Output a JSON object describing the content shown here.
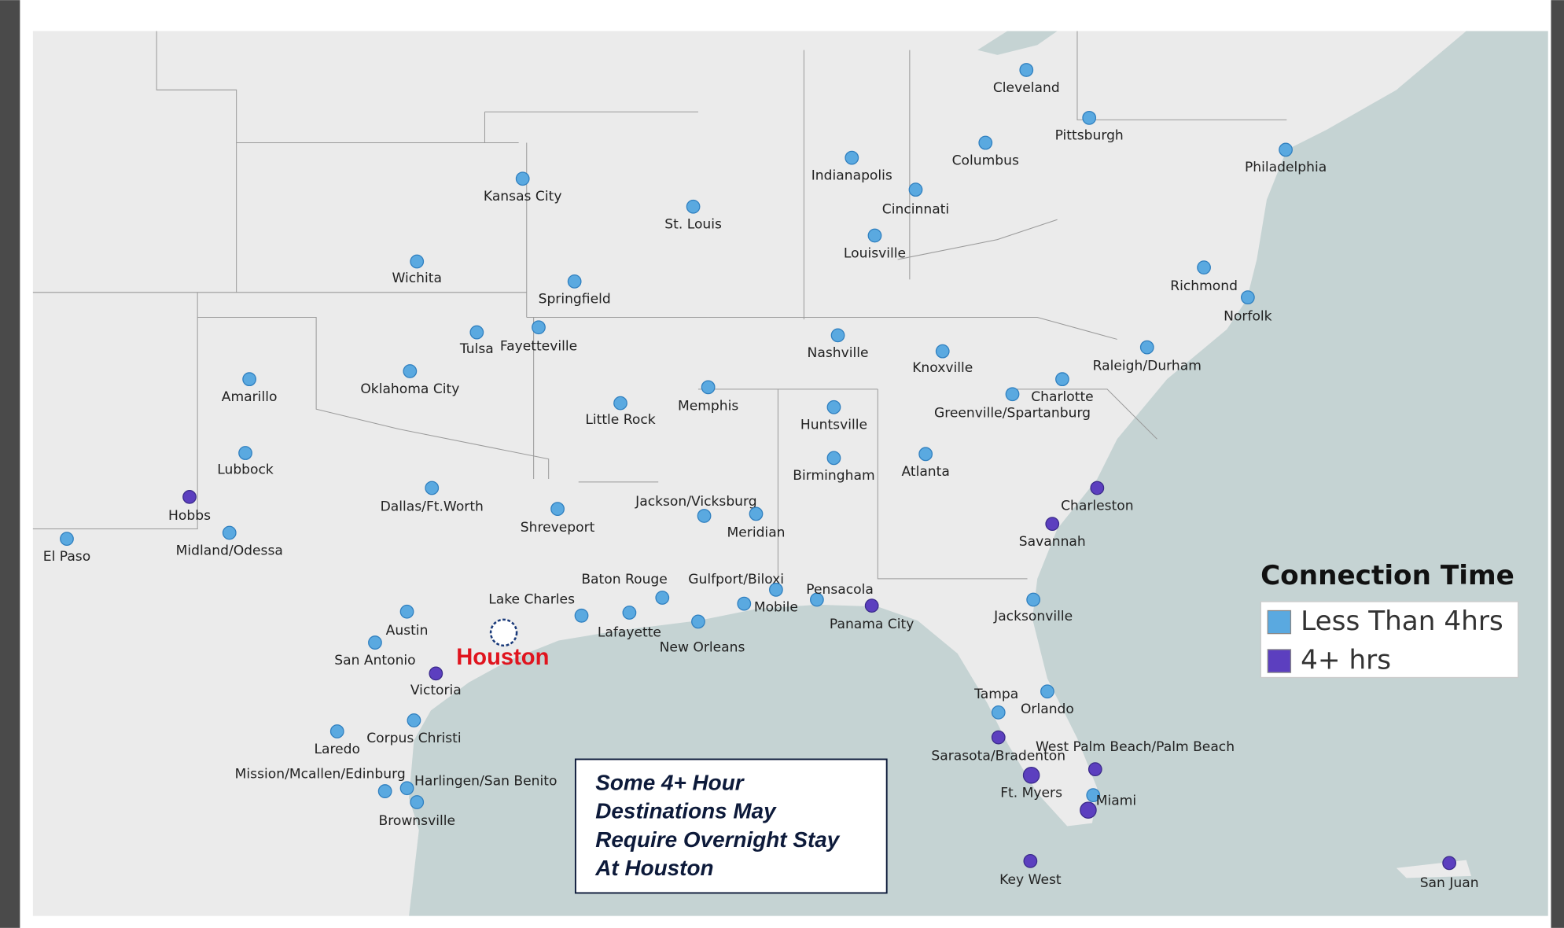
{
  "legend": {
    "title": "Connection Time",
    "items": [
      {
        "label": "Less Than 4hrs",
        "color": "#5aa9e0"
      },
      {
        "label": "4+ hrs",
        "color": "#5c3fbf"
      }
    ]
  },
  "hub": {
    "label": "Houston",
    "color": "#e0141e"
  },
  "note": [
    "Some 4+ Hour",
    "Destinations May",
    "Require Overnight Stay",
    "At Houston"
  ],
  "cities": [
    {
      "name": "Cleveland",
      "group": 0
    },
    {
      "name": "Pittsburgh",
      "group": 0
    },
    {
      "name": "Philadelphia",
      "group": 0
    },
    {
      "name": "Columbus",
      "group": 0
    },
    {
      "name": "Indianapolis",
      "group": 0
    },
    {
      "name": "Cincinnati",
      "group": 0
    },
    {
      "name": "Louisville",
      "group": 0
    },
    {
      "name": "Kansas City",
      "group": 0
    },
    {
      "name": "St. Louis",
      "group": 0
    },
    {
      "name": "Wichita",
      "group": 0
    },
    {
      "name": "Springfield",
      "group": 0
    },
    {
      "name": "Tulsa",
      "group": 0
    },
    {
      "name": "Fayetteville",
      "group": 0
    },
    {
      "name": "Oklahoma City",
      "group": 0
    },
    {
      "name": "Amarillo",
      "group": 0
    },
    {
      "name": "Lubbock",
      "group": 0
    },
    {
      "name": "Hobbs",
      "group": 1
    },
    {
      "name": "Midland/Odessa",
      "group": 0
    },
    {
      "name": "El Paso",
      "group": 0
    },
    {
      "name": "Dallas/Ft.Worth",
      "group": 0
    },
    {
      "name": "Shreveport",
      "group": 0
    },
    {
      "name": "Little Rock",
      "group": 0
    },
    {
      "name": "Memphis",
      "group": 0
    },
    {
      "name": "Nashville",
      "group": 0
    },
    {
      "name": "Knoxville",
      "group": 0
    },
    {
      "name": "Richmond",
      "group": 0
    },
    {
      "name": "Norfolk",
      "group": 0
    },
    {
      "name": "Raleigh/Durham",
      "group": 0
    },
    {
      "name": "Charlotte",
      "group": 0
    },
    {
      "name": "Greenville/Spartanburg",
      "group": 0
    },
    {
      "name": "Huntsville",
      "group": 0
    },
    {
      "name": "Birmingham",
      "group": 0
    },
    {
      "name": "Atlanta",
      "group": 0
    },
    {
      "name": "Charleston",
      "group": 1
    },
    {
      "name": "Savannah",
      "group": 1
    },
    {
      "name": "Jackson/Vicksburg",
      "group": 0
    },
    {
      "name": "Meridian",
      "group": 0
    },
    {
      "name": "Baton Rouge",
      "group": 0
    },
    {
      "name": "Gulfport/Biloxi",
      "group": 0
    },
    {
      "name": "Mobile",
      "group": 0
    },
    {
      "name": "Pensacola",
      "group": 0
    },
    {
      "name": "Panama City",
      "group": 1
    },
    {
      "name": "Lake Charles",
      "group": 0
    },
    {
      "name": "Lafayette",
      "group": 0
    },
    {
      "name": "New Orleans",
      "group": 0
    },
    {
      "name": "Jacksonville",
      "group": 0
    },
    {
      "name": "Austin",
      "group": 0
    },
    {
      "name": "San Antonio",
      "group": 0
    },
    {
      "name": "Victoria",
      "group": 1
    },
    {
      "name": "Corpus Christi",
      "group": 0
    },
    {
      "name": "Laredo",
      "group": 0
    },
    {
      "name": "Mission/Mcallen/Edinburg",
      "group": 0
    },
    {
      "name": "Harlingen/San Benito",
      "group": 0
    },
    {
      "name": "Brownsville",
      "group": 0
    },
    {
      "name": "Tampa",
      "group": 0
    },
    {
      "name": "Orlando",
      "group": 0
    },
    {
      "name": "Sarasota/Bradenton",
      "group": 1
    },
    {
      "name": "West Palm Beach/Palm Beach",
      "group": 1
    },
    {
      "name": "Ft. Myers",
      "group": 1
    },
    {
      "name": "Miami",
      "group": 0
    },
    {
      "name": "Key West",
      "group": 1
    },
    {
      "name": "San Juan",
      "group": 1
    }
  ]
}
